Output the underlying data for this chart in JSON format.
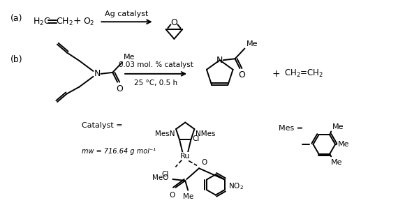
{
  "background_color": "#ffffff",
  "figsize": [
    5.8,
    3.04
  ],
  "dpi": 100,
  "label_a": "(a)",
  "label_b": "(b)",
  "reaction_a_catalyst": "Ag catalyst",
  "reaction_b_conditions": "0.03 mol. % catalyst",
  "reaction_b_conditions2": "25 °C, 0.5 h",
  "reaction_b_product2": "CH₂=CH₂",
  "catalyst_label": "Catalyst =",
  "catalyst_mesn": "MesN",
  "catalyst_nmes": "NMes",
  "catalyst_cl1": "Cl",
  "catalyst_ru": "Ru",
  "catalyst_cl2": "Cl",
  "catalyst_no2": "NO₂",
  "catalyst_meo": "MeO",
  "catalyst_mw": "mw = 716.64 g mol⁻¹",
  "mes_label": "Mes =",
  "mes_me1": "Me",
  "mes_me2": "Me",
  "mes_me3": "Me",
  "me_label": "Me",
  "color_black": "#000000",
  "color_white": "#ffffff"
}
